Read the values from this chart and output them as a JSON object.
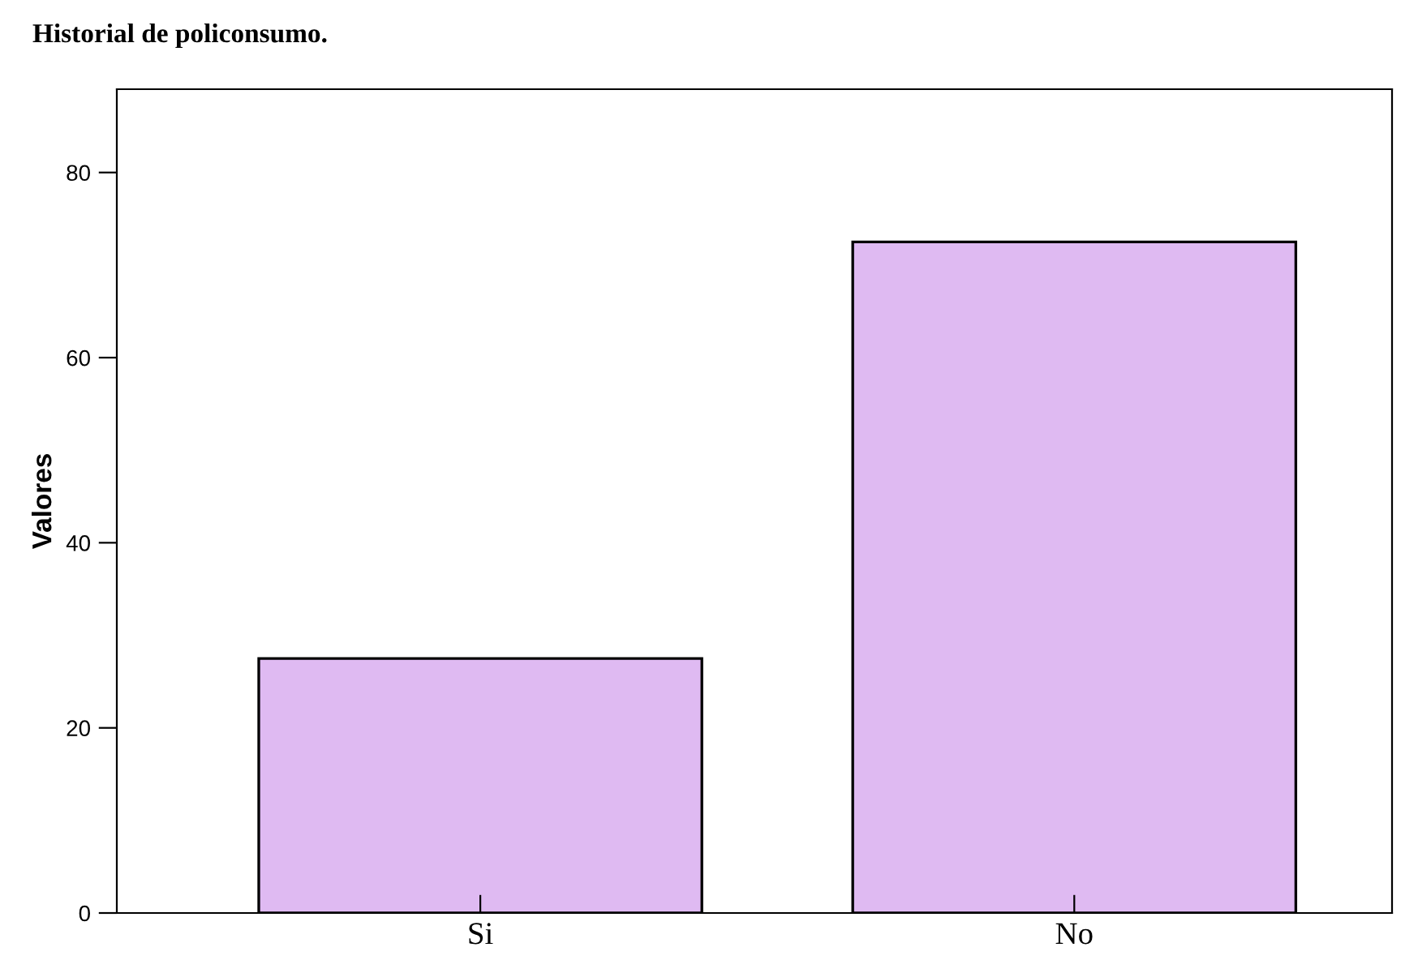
{
  "chart_data": {
    "type": "bar",
    "title": "Historial de policonsumo.",
    "ylabel": "Valores",
    "categories": [
      "Si",
      "No"
    ],
    "values": [
      27.5,
      72.5
    ],
    "color": "#dfbaf2",
    "ylim": [
      0,
      89
    ],
    "yticks": [
      0,
      20,
      40,
      60,
      80
    ],
    "grid": false,
    "legend": false
  }
}
